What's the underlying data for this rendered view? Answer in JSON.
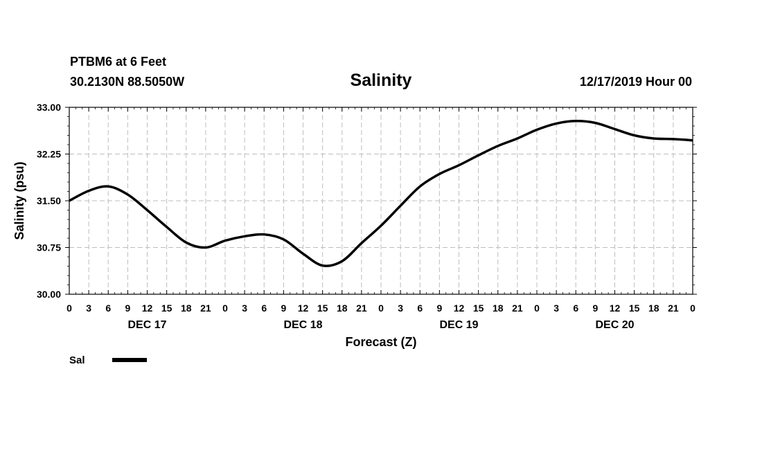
{
  "chart_data": {
    "type": "line",
    "station": "PTBM6 at 6 Feet",
    "location": "30.2130N 88.5050W",
    "title": "Salinity",
    "run": "12/17/2019 Hour 00",
    "xlabel": "Forecast (Z)",
    "ylabel": "Salinity (psu)",
    "ylim": [
      30.0,
      33.0
    ],
    "yticks": [
      "30.00",
      "30.75",
      "31.50",
      "32.25",
      "33.00"
    ],
    "xlim": [
      0,
      96
    ],
    "xtick_hours": [
      0,
      3,
      6,
      9,
      12,
      15,
      18,
      21,
      24,
      27,
      30,
      33,
      36,
      39,
      42,
      45,
      48,
      51,
      54,
      57,
      60,
      63,
      66,
      69,
      72,
      75,
      78,
      81,
      84,
      87,
      90,
      93,
      96
    ],
    "xtick_labels": [
      "0",
      "3",
      "6",
      "9",
      "12",
      "15",
      "18",
      "21",
      "0",
      "3",
      "6",
      "9",
      "12",
      "15",
      "18",
      "21",
      "0",
      "3",
      "6",
      "9",
      "12",
      "15",
      "18",
      "21",
      "0",
      "3",
      "6",
      "9",
      "12",
      "15",
      "18",
      "21",
      "0"
    ],
    "day_labels": [
      {
        "label": "DEC 17",
        "hour": 12
      },
      {
        "label": "DEC 18",
        "hour": 36
      },
      {
        "label": "DEC 19",
        "hour": 60
      },
      {
        "label": "DEC 20",
        "hour": 84
      }
    ],
    "grid": true,
    "legend_position": "bottom-left",
    "series": [
      {
        "name": "Sal",
        "x": [
          0,
          3,
          6,
          9,
          12,
          15,
          18,
          21,
          24,
          27,
          30,
          33,
          36,
          39,
          42,
          45,
          48,
          51,
          54,
          57,
          60,
          63,
          66,
          69,
          72,
          75,
          78,
          81,
          84,
          87,
          90,
          93,
          96
        ],
        "values": [
          31.5,
          31.66,
          31.73,
          31.6,
          31.35,
          31.08,
          30.83,
          30.75,
          30.86,
          30.93,
          30.96,
          30.88,
          30.65,
          30.46,
          30.53,
          30.82,
          31.1,
          31.42,
          31.73,
          31.93,
          32.07,
          32.23,
          32.38,
          32.5,
          32.64,
          32.74,
          32.78,
          32.75,
          32.65,
          32.55,
          32.5,
          32.49,
          32.47
        ]
      }
    ]
  }
}
